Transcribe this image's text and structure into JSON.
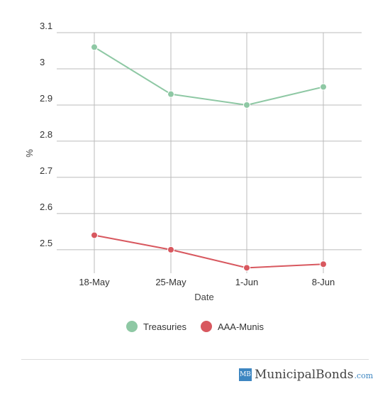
{
  "chart_data": {
    "type": "line",
    "categories": [
      "18-May",
      "25-May",
      "1-Jun",
      "8-Jun"
    ],
    "series": [
      {
        "name": "Treasuries",
        "values": [
          3.06,
          2.93,
          2.9,
          2.95
        ],
        "color": "#8ec8a4"
      },
      {
        "name": "AAA-Munis",
        "values": [
          2.54,
          2.5,
          2.45,
          2.46
        ],
        "color": "#d8585f"
      }
    ],
    "xlabel": "Date",
    "ylabel": "%",
    "yticks": [
      "3.1",
      "3",
      "2.9",
      "2.8",
      "2.7",
      "2.6",
      "2.5"
    ],
    "ylim": [
      2.43,
      3.1
    ],
    "grid": true,
    "legend_position": "bottom"
  },
  "brand": {
    "badge": "MB",
    "name": "MunicipalBonds",
    "tld": ".com"
  }
}
